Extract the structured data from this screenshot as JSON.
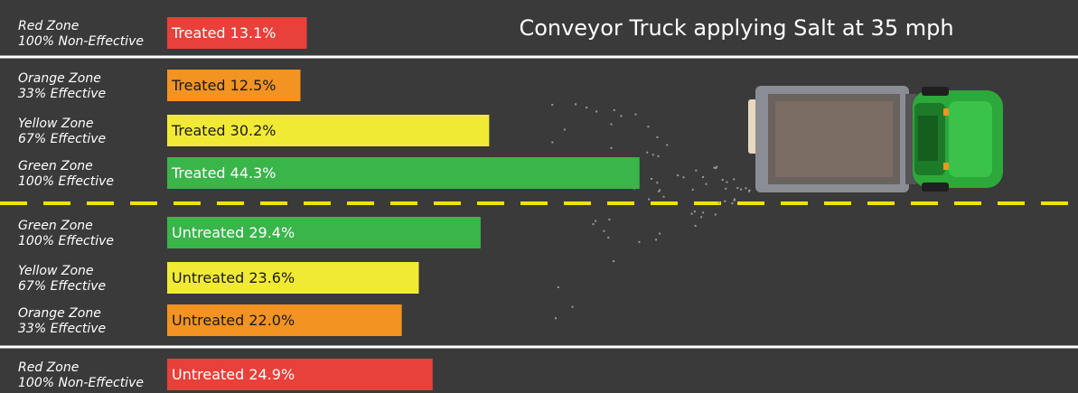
{
  "chart_data": {
    "type": "bar",
    "orientation": "horizontal",
    "title": "Conveyor Truck applying Salt at 35 mph",
    "categories": [
      [
        "Red Zone",
        "100% Non-Effective"
      ],
      [
        "Orange Zone",
        "33% Effective"
      ],
      [
        "Yellow Zone",
        "67% Effective"
      ],
      [
        "Green Zone",
        "100% Effective"
      ],
      [
        "Green Zone",
        "100% Effective"
      ],
      [
        "Yellow Zone",
        "67% Effective"
      ],
      [
        "Orange Zone",
        "33% Effective"
      ],
      [
        "Red Zone",
        "100% Non-Effective"
      ]
    ],
    "values": [
      13.1,
      12.5,
      30.2,
      44.3,
      29.4,
      23.6,
      22.0,
      24.9
    ],
    "value_labels": [
      "Treated 13.1%",
      "Treated 12.5%",
      "Treated 30.2%",
      "Treated 44.3%",
      "Untreated 29.4%",
      "Untreated 23.6%",
      "Untreated 22.0%",
      "Untreated 24.9%"
    ],
    "colors": [
      "#e8403a",
      "#f39322",
      "#f1ea35",
      "#39b54a",
      "#39b54a",
      "#f1ea35",
      "#f39322",
      "#e8403a"
    ]
  }
}
